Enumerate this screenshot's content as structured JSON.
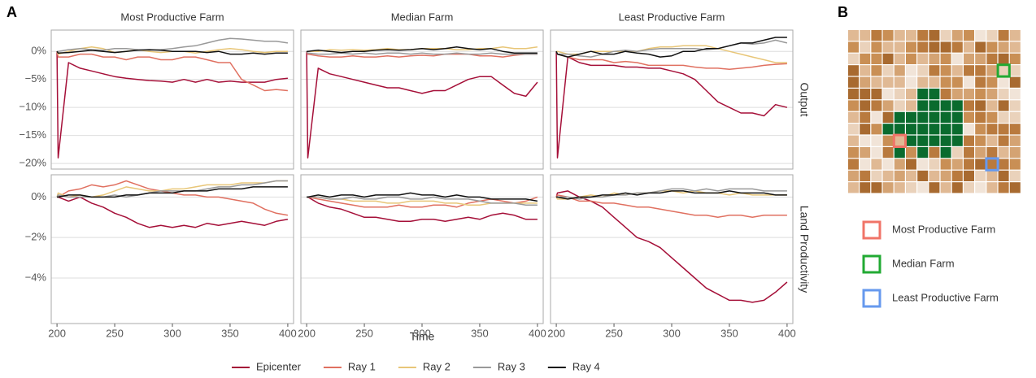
{
  "panel_labels": [
    "A",
    "B"
  ],
  "chart_data": {
    "type": "line",
    "xlabel": "Time",
    "x": [
      200,
      201,
      210,
      220,
      230,
      240,
      250,
      260,
      270,
      280,
      290,
      300,
      310,
      320,
      330,
      340,
      350,
      360,
      370,
      380,
      390,
      400
    ],
    "xlim": [
      195,
      405
    ],
    "xticks": [
      200,
      250,
      300,
      350,
      400
    ],
    "columns": [
      "Most Productive Farm",
      "Median Farm",
      "Least Productive Farm"
    ],
    "rows": [
      {
        "label": "Output",
        "ylim": [
          -21,
          3.8
        ],
        "yticks": [
          {
            "value": 0,
            "label": "0%"
          },
          {
            "value": -5,
            "label": "−5%"
          },
          {
            "value": -10,
            "label": "−10%"
          },
          {
            "value": -15,
            "label": "−15%"
          },
          {
            "value": -20,
            "label": "−20%"
          }
        ]
      },
      {
        "label": "Land Productivity",
        "ylim": [
          -6.25,
          1.1
        ],
        "yticks": [
          {
            "value": 0,
            "label": "0%"
          },
          {
            "value": -2,
            "label": "−2%"
          },
          {
            "value": -4,
            "label": "−4%"
          }
        ]
      }
    ],
    "series": [
      {
        "name": "Epicenter",
        "color": "#a50f38"
      },
      {
        "name": "Ray 1",
        "color": "#e07060"
      },
      {
        "name": "Ray 2",
        "color": "#e8c678"
      },
      {
        "name": "Ray 3",
        "color": "#999999"
      },
      {
        "name": "Ray 4",
        "color": "#111111"
      }
    ],
    "panels": [
      [
        [
          [
            0,
            -19,
            -2,
            -3,
            -3.5,
            -4,
            -4.5,
            -4.8,
            -5,
            -5.2,
            -5.3,
            -5.5,
            -5,
            -5.5,
            -5,
            -5.5,
            -5.3,
            -5.5,
            -5.5,
            -5.5,
            -5,
            -4.8
          ],
          [
            0,
            -1,
            -1,
            -0.5,
            -0.5,
            -1,
            -1,
            -1.5,
            -1,
            -1,
            -1.5,
            -1.5,
            -1,
            -1,
            -1.5,
            -2,
            -2,
            -5,
            -6,
            -7,
            -6.8,
            -7
          ],
          [
            0,
            -0.5,
            0,
            0.5,
            0.8,
            0.5,
            -0.2,
            0,
            0.3,
            0,
            -0.2,
            0,
            0,
            -0.3,
            0,
            0.3,
            0.5,
            0.3,
            0,
            -0.2,
            0,
            0
          ],
          [
            0,
            0,
            0.3,
            0.5,
            0.3,
            0.2,
            0.5,
            0.5,
            0.3,
            0.2,
            0.3,
            0.5,
            0.8,
            1,
            1.5,
            2,
            2.3,
            2.2,
            2,
            1.8,
            1.8,
            1.5
          ],
          [
            0,
            -0.3,
            -0.2,
            0,
            0.2,
            0,
            -0.2,
            0,
            0.2,
            0.3,
            0.2,
            0,
            0,
            0,
            -0.2,
            0,
            -0.5,
            -0.5,
            -0.3,
            -0.5,
            -0.3,
            -0.3
          ]
        ],
        [
          [
            0,
            -19,
            -3,
            -4,
            -4.5,
            -5,
            -5.5,
            -6,
            -6.5,
            -6.5,
            -7,
            -7.5,
            -7,
            -7,
            -6,
            -5,
            -4.5,
            -4.5,
            -6,
            -7.5,
            -8,
            -5.5
          ],
          [
            0,
            -0.5,
            -0.8,
            -1,
            -1,
            -0.8,
            -1,
            -1,
            -0.8,
            -1,
            -0.8,
            -0.7,
            -0.8,
            -0.5,
            -0.5,
            -0.5,
            -0.8,
            -0.8,
            -1,
            -0.7,
            -0.5,
            -0.5
          ],
          [
            0,
            0,
            0,
            0.3,
            0.2,
            0.3,
            0.2,
            0.3,
            0.5,
            0.3,
            0.3,
            0.5,
            0.5,
            0.5,
            0.3,
            0.3,
            0.5,
            0.5,
            0.8,
            0.5,
            0.5,
            0.8
          ],
          [
            0,
            -0.3,
            -0.5,
            -0.5,
            -0.3,
            -0.5,
            -0.3,
            -0.5,
            -0.3,
            -0.3,
            -0.5,
            -0.3,
            -0.5,
            -0.5,
            -0.3,
            -0.5,
            -0.5,
            -0.3,
            -0.5,
            -0.5,
            -0.5,
            -0.5
          ],
          [
            0,
            0,
            0.2,
            0,
            -0.2,
            0,
            0,
            0.2,
            0.3,
            0.2,
            0.3,
            0.5,
            0.3,
            0.5,
            0.8,
            0.5,
            0.3,
            0.5,
            0,
            -0.3,
            -0.3,
            -0.3
          ]
        ],
        [
          [
            0,
            -19,
            -1,
            -2,
            -2.5,
            -2.5,
            -2.5,
            -2.8,
            -2.8,
            -3,
            -3,
            -3.5,
            -4,
            -5,
            -7,
            -9,
            -10,
            -11,
            -11,
            -11.5,
            -9.5,
            -10
          ],
          [
            0,
            -0.5,
            -1,
            -1.5,
            -1.5,
            -1.5,
            -2,
            -1.8,
            -2,
            -2.5,
            -2.5,
            -2.5,
            -2.5,
            -2.8,
            -3,
            -3,
            -3.2,
            -3,
            -2.8,
            -2.5,
            -2.3,
            -2.2
          ],
          [
            0,
            0,
            -0.5,
            -0.5,
            0,
            0,
            0,
            0,
            0,
            0.5,
            0.8,
            0.8,
            1,
            1,
            1,
            0.5,
            0,
            -0.5,
            -1,
            -1.5,
            -2,
            -2
          ],
          [
            0,
            -0.5,
            -0.5,
            -0.8,
            -1,
            -0.5,
            0,
            0.2,
            0,
            0.3,
            0.5,
            0.5,
            0.5,
            0.5,
            0.3,
            0.5,
            1,
            1.5,
            1.3,
            1.5,
            2,
            1.5
          ],
          [
            0,
            -0.5,
            -1,
            -0.5,
            0,
            -0.5,
            -0.5,
            0,
            -0.3,
            -0.5,
            -1,
            -0.8,
            0,
            0,
            0.5,
            0.5,
            1,
            1.5,
            1.5,
            2,
            2.5,
            2.5
          ]
        ]
      ],
      [
        [
          [
            0,
            0,
            -0.2,
            0,
            -0.3,
            -0.5,
            -0.8,
            -1,
            -1.3,
            -1.5,
            -1.4,
            -1.5,
            -1.4,
            -1.5,
            -1.3,
            -1.4,
            -1.3,
            -1.2,
            -1.3,
            -1.4,
            -1.2,
            -1.1
          ],
          [
            0,
            0,
            0.3,
            0.4,
            0.6,
            0.5,
            0.6,
            0.8,
            0.6,
            0.4,
            0.3,
            0.2,
            0.1,
            0.1,
            0,
            0,
            -0.1,
            -0.2,
            -0.3,
            -0.6,
            -0.8,
            -0.9
          ],
          [
            0,
            0.2,
            0,
            0.1,
            0,
            0.1,
            0.3,
            0.5,
            0.4,
            0.3,
            0.3,
            0.4,
            0.4,
            0.5,
            0.6,
            0.6,
            0.6,
            0.7,
            0.7,
            0.7,
            0.8,
            0.8
          ],
          [
            0,
            0.1,
            0,
            0,
            0,
            0,
            0.1,
            0,
            0.1,
            0.2,
            0.3,
            0.3,
            0.3,
            0.3,
            0.4,
            0.5,
            0.5,
            0.6,
            0.6,
            0.7,
            0.8,
            0.8
          ],
          [
            0,
            0,
            0.1,
            0.1,
            0,
            0,
            0,
            0.1,
            0.1,
            0.2,
            0.2,
            0.2,
            0.3,
            0.3,
            0.3,
            0.4,
            0.4,
            0.4,
            0.5,
            0.5,
            0.5,
            0.5
          ]
        ],
        [
          [
            0,
            0,
            -0.3,
            -0.5,
            -0.6,
            -0.8,
            -1,
            -1,
            -1.1,
            -1.2,
            -1.2,
            -1.1,
            -1.1,
            -1.2,
            -1.1,
            -1,
            -1.1,
            -0.9,
            -0.8,
            -0.9,
            -1.1,
            -1.1
          ],
          [
            0,
            0,
            -0.1,
            -0.2,
            -0.3,
            -0.4,
            -0.5,
            -0.5,
            -0.5,
            -0.4,
            -0.5,
            -0.5,
            -0.4,
            -0.4,
            -0.5,
            -0.3,
            -0.2,
            -0.1,
            -0.2,
            -0.3,
            -0.2,
            0
          ],
          [
            0,
            0,
            0,
            -0.1,
            -0.1,
            -0.2,
            -0.2,
            -0.2,
            -0.3,
            -0.3,
            -0.2,
            -0.2,
            -0.2,
            -0.3,
            -0.3,
            -0.4,
            -0.4,
            -0.3,
            -0.3,
            -0.3,
            -0.3,
            -0.3
          ],
          [
            0,
            0,
            0,
            -0.1,
            -0.1,
            0,
            -0.1,
            -0.1,
            0,
            0,
            -0.1,
            -0.1,
            0,
            -0.1,
            -0.1,
            -0.1,
            -0.2,
            -0.3,
            -0.3,
            -0.3,
            -0.4,
            -0.4
          ],
          [
            0,
            0,
            0.1,
            0,
            0.1,
            0.1,
            0,
            0.1,
            0.1,
            0.1,
            0.2,
            0.1,
            0.1,
            0,
            0.1,
            0,
            0,
            -0.1,
            -0.1,
            -0.1,
            -0.1,
            -0.2
          ]
        ],
        [
          [
            0,
            0.2,
            0.3,
            0,
            -0.2,
            -0.5,
            -1,
            -1.5,
            -2,
            -2.2,
            -2.5,
            -3,
            -3.5,
            -4,
            -4.5,
            -4.8,
            -5.1,
            -5.1,
            -5.2,
            -5.1,
            -4.7,
            -4.2
          ],
          [
            0,
            0.1,
            0,
            -0.2,
            -0.2,
            -0.3,
            -0.3,
            -0.4,
            -0.5,
            -0.5,
            -0.6,
            -0.7,
            -0.8,
            -0.9,
            -0.9,
            -1,
            -0.9,
            -0.9,
            -1,
            -0.9,
            -0.9,
            -0.9
          ],
          [
            0,
            -0.1,
            -0.1,
            0,
            0.1,
            0,
            0.2,
            0.1,
            0.2,
            0.2,
            0.3,
            0.3,
            0.2,
            0.3,
            0.2,
            0.2,
            0.1,
            0.2,
            0.1,
            0.1,
            0.1,
            0.1
          ],
          [
            0,
            0,
            0,
            -0.1,
            0,
            0,
            0.1,
            0.1,
            0.2,
            0.2,
            0.3,
            0.4,
            0.4,
            0.3,
            0.4,
            0.3,
            0.4,
            0.4,
            0.4,
            0.3,
            0.3,
            0.3
          ],
          [
            0,
            0,
            -0.1,
            0,
            0,
            0.1,
            0.1,
            0.2,
            0.1,
            0.2,
            0.2,
            0.3,
            0.3,
            0.2,
            0.2,
            0.2,
            0.3,
            0.2,
            0.2,
            0.2,
            0.1,
            0.1
          ]
        ]
      ]
    ]
  },
  "map_legend": [
    {
      "label": "Most Productive Farm",
      "color": "#f07468"
    },
    {
      "label": "Median Farm",
      "color": "#22aa33"
    },
    {
      "label": "Least Productive Farm",
      "color": "#6699ee"
    }
  ]
}
